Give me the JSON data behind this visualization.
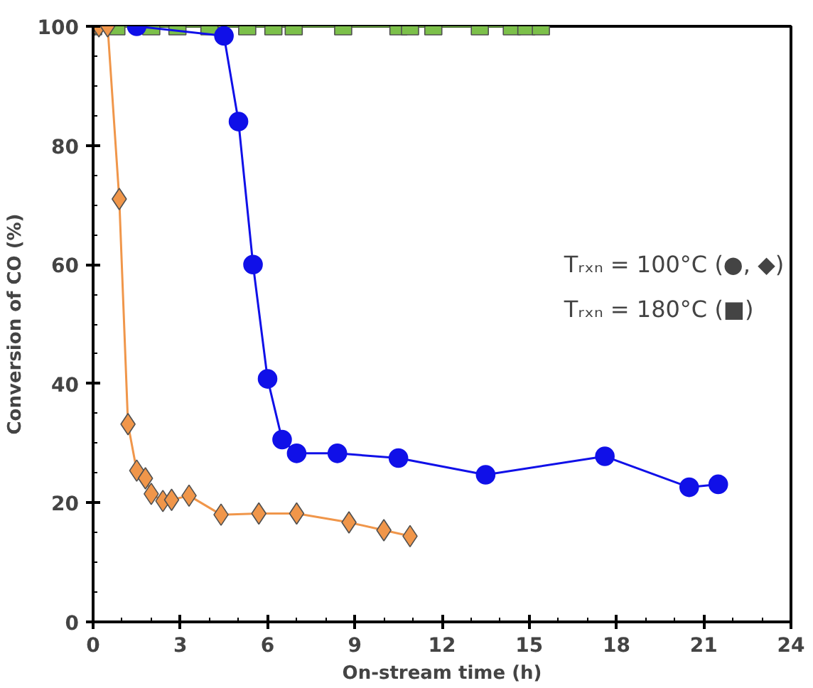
{
  "chart_data": {
    "type": "line",
    "xlabel": "On-stream time (h)",
    "ylabel": "Conversion of CO (%)",
    "xlim": [
      0,
      24
    ],
    "ylim": [
      0,
      100
    ],
    "xticks": [
      0,
      3,
      6,
      9,
      12,
      15,
      18,
      21,
      24
    ],
    "yticks": [
      0,
      20,
      40,
      60,
      80,
      100
    ],
    "grid": false,
    "line_style": "solid",
    "annotations": [
      "Tᵣₓₙ = 100°C (●, ◆)",
      "Tᵣₓₙ = 180°C (■)"
    ],
    "series": [
      {
        "color": "#7cc04a",
        "marker": "square",
        "x": [
          0,
          0.8,
          2.0,
          2.9,
          4.0,
          5.3,
          6.2,
          6.9,
          8.6,
          10.5,
          10.9,
          11.7,
          13.3,
          14.4,
          14.9,
          15.4
        ],
        "values": [
          100,
          100,
          100,
          100,
          100,
          100,
          100,
          100,
          100,
          100,
          100,
          100,
          100,
          100,
          100,
          100
        ]
      },
      {
        "color": "#1010e8",
        "marker": "circle",
        "x": [
          1.5,
          4.5,
          5.0,
          5.5,
          6.0,
          6.5,
          7.0,
          8.4,
          10.5,
          13.5,
          17.6,
          20.5,
          21.5
        ],
        "values": [
          100,
          98.4,
          84,
          60,
          40.8,
          30.6,
          28.3,
          28.3,
          27.5,
          24.7,
          27.8,
          22.6,
          23.1
        ]
      },
      {
        "color": "#f0964a",
        "marker": "diamond",
        "x": [
          0,
          0.2,
          0.5,
          0.9,
          1.2,
          1.5,
          1.8,
          2.0,
          2.4,
          2.7,
          3.3,
          4.4,
          5.7,
          7.0,
          8.8,
          10.0,
          10.9
        ],
        "values": [
          100,
          100,
          100,
          71,
          33.2,
          25.4,
          24.1,
          21.5,
          20.3,
          20.5,
          21.2,
          18.0,
          18.2,
          18.2,
          16.7,
          15.4,
          14.4
        ]
      }
    ]
  }
}
